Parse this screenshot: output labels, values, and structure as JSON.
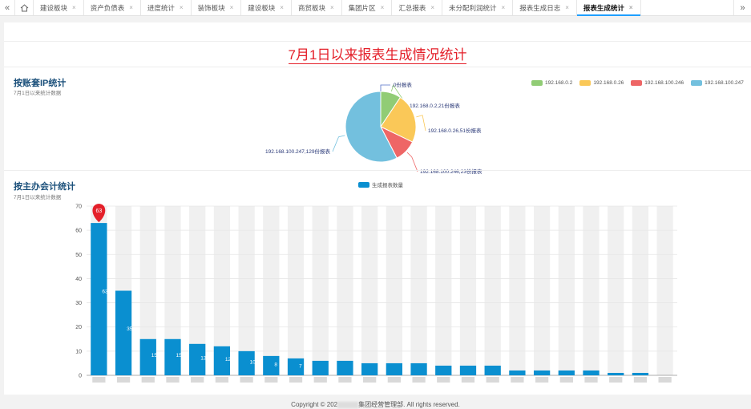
{
  "tabbar": {
    "prev_icon": "«",
    "home_icon": "home-icon",
    "next_icon": "»",
    "close_glyph": "×",
    "tabs": [
      {
        "label": "建设板块"
      },
      {
        "label": "资产负债表"
      },
      {
        "label": "进度统计"
      },
      {
        "label": "装饰板块"
      },
      {
        "label": "建设板块"
      },
      {
        "label": "商贸板块"
      },
      {
        "label": "集团片区"
      },
      {
        "label": "汇总报表"
      },
      {
        "label": "未分配利润统计"
      },
      {
        "label": "报表生成日志"
      },
      {
        "label": "报表生成统计",
        "active": true
      }
    ]
  },
  "page": {
    "title": "7月1日以来报表生成情况统计"
  },
  "pie_section": {
    "title": "按账套IP统计",
    "subtitle": "7月1日以来统计数据"
  },
  "bar_section": {
    "title": "按主办会计统计",
    "subtitle": "7月1日以来统计数据"
  },
  "chart_data": [
    {
      "type": "pie",
      "series": [
        {
          "name": "192.168.0.2",
          "value": 21,
          "label": "192.168.0.2,21份报表",
          "color": "#91cc75"
        },
        {
          "name": "192.168.0.26",
          "value": 51,
          "label": "192.168.0.26,51份报表",
          "color": "#fac858"
        },
        {
          "name": "192.168.100.246",
          "value": 23,
          "label": "192.168.100.246,23份报表",
          "color": "#ee6666"
        },
        {
          "name": "192.168.100.247",
          "value": 129,
          "label": "192.168.100.247,129份报表",
          "color": "#73c0de"
        }
      ],
      "extra_label": ",0份报表",
      "legend": [
        "192.168.0.2",
        "192.168.0.26",
        "192.168.100.246",
        "192.168.100.247"
      ],
      "legend_position": "top-right"
    },
    {
      "type": "bar",
      "legend": "生成报表数量",
      "color": "#0a8fd0",
      "ylim": [
        0,
        70
      ],
      "yticks": [
        0,
        10,
        20,
        30,
        40,
        50,
        60,
        70
      ],
      "values": [
        63,
        35,
        15,
        15,
        13,
        12,
        10,
        8,
        7,
        6,
        6,
        5,
        5,
        5,
        4,
        4,
        4,
        2,
        2,
        2,
        2,
        1,
        1,
        0
      ],
      "max_marker": "63",
      "data_labels_visible": [
        "63",
        "35",
        "15",
        "15",
        "13",
        "12",
        "10",
        "8",
        "7"
      ]
    }
  ],
  "footer": {
    "prefix": "Copyright © 202",
    "suffix": "集团经营管理部. All rights reserved."
  }
}
